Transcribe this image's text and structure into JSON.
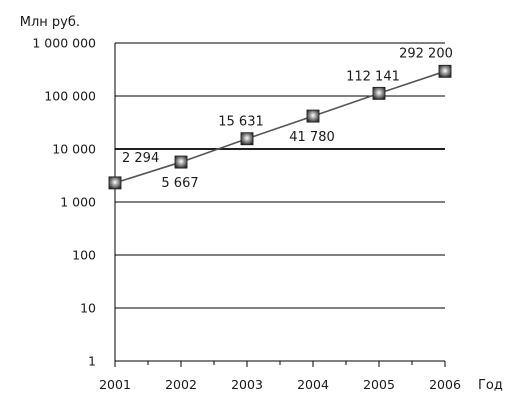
{
  "chart_data": {
    "type": "line",
    "title": "",
    "xlabel": "Год",
    "ylabel": "Млн руб.",
    "y_scale": "log",
    "ylim": [
      1,
      1000000
    ],
    "xlim": [
      2001,
      2006
    ],
    "grid": "horizontal",
    "x_ticks": [
      "2001",
      "2002",
      "2003",
      "2004",
      "2005",
      "2006"
    ],
    "y_ticks": [
      {
        "value": 1,
        "label": "1"
      },
      {
        "value": 10,
        "label": "10"
      },
      {
        "value": 100,
        "label": "100"
      },
      {
        "value": 1000,
        "label": "1 000"
      },
      {
        "value": 10000,
        "label": "10 000"
      },
      {
        "value": 100000,
        "label": "100 000"
      },
      {
        "value": 1000000,
        "label": "1 000 000"
      }
    ],
    "series": [
      {
        "x": [
          2001,
          2002,
          2003,
          2004,
          2005,
          2006
        ],
        "values": [
          2294,
          5667,
          15631,
          41780,
          112141,
          292200
        ],
        "data_labels": [
          "2 294",
          "5 667",
          "15 631",
          "41 780",
          "112 141",
          "292 200"
        ],
        "color": "#555555",
        "marker": "square"
      }
    ]
  }
}
